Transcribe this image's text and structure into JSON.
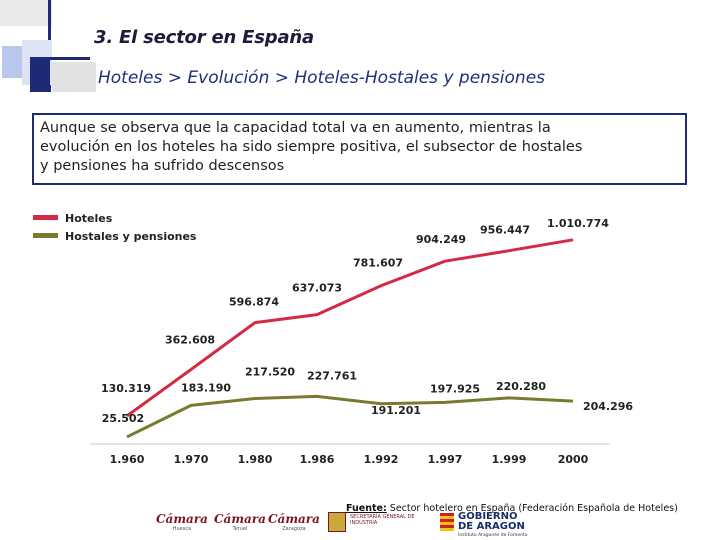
{
  "header": {
    "title": "3.  El sector en España",
    "subtitle": "Hoteles > Evolución > Hoteles-Hostales y pensiones"
  },
  "summary": {
    "line1": "Aunque se observa que la capacidad total va en aumento, mientras la",
    "line2_a": "evolución en los ",
    "line2_b": "hoteles",
    "line2_c": " ha sido ",
    "line2_d": "siempre positiva,",
    "line2_e": " el subsector de ",
    "line2_f": "hostales",
    "line3_a": "y pensiones",
    "line3_b": " ha sufrido ",
    "line3_c": "descensos"
  },
  "chart_data": {
    "type": "line",
    "title": "",
    "xlabel": "",
    "ylabel": "",
    "categories": [
      "1.960",
      "1.970",
      "1.980",
      "1.986",
      "1.992",
      "1.997",
      "1.999",
      "2000"
    ],
    "series": [
      {
        "name": "Hoteles",
        "color": "#d42a45",
        "values": [
          130319,
          362608,
          596874,
          637073,
          781607,
          904249,
          956447,
          1010774
        ],
        "labels": [
          "130.319",
          "362.608",
          "596.874",
          "637.073",
          "781.607",
          "904.249",
          "956.447",
          "1.010.774"
        ]
      },
      {
        "name": "Hostales y pensiones",
        "color": "#7a7a2e",
        "values": [
          25502,
          183190,
          217520,
          227761,
          191201,
          197925,
          220280,
          204296
        ],
        "labels": [
          "25.502",
          "183.190",
          "217.520",
          "227.761",
          "191.201",
          "197.925",
          "220.280",
          "204.296"
        ]
      }
    ],
    "ylim": [
      0,
      1100000
    ],
    "grid": false,
    "legend": "top-left"
  },
  "footer": {
    "source_label": "Fuente:",
    "source_text": " Sector hotelero en España (Federación Española de Hoteles)",
    "logos": [
      {
        "name": "Cámara",
        "sub": "Huesca"
      },
      {
        "name": "Cámara",
        "sub": "Teruel"
      },
      {
        "name": "Cámara",
        "sub": "Zaragoza"
      }
    ],
    "ministry_text": "SECRETARÍA GENERAL DE INDUSTRIA",
    "gob_line1": "GOBIERNO",
    "gob_line2": "DE ARAGON",
    "gob_line3": "Instituto Aragonés de Fomento"
  },
  "colors": {
    "accent_blue": "#1e2a78",
    "deco_light": "#b9c7ef"
  }
}
